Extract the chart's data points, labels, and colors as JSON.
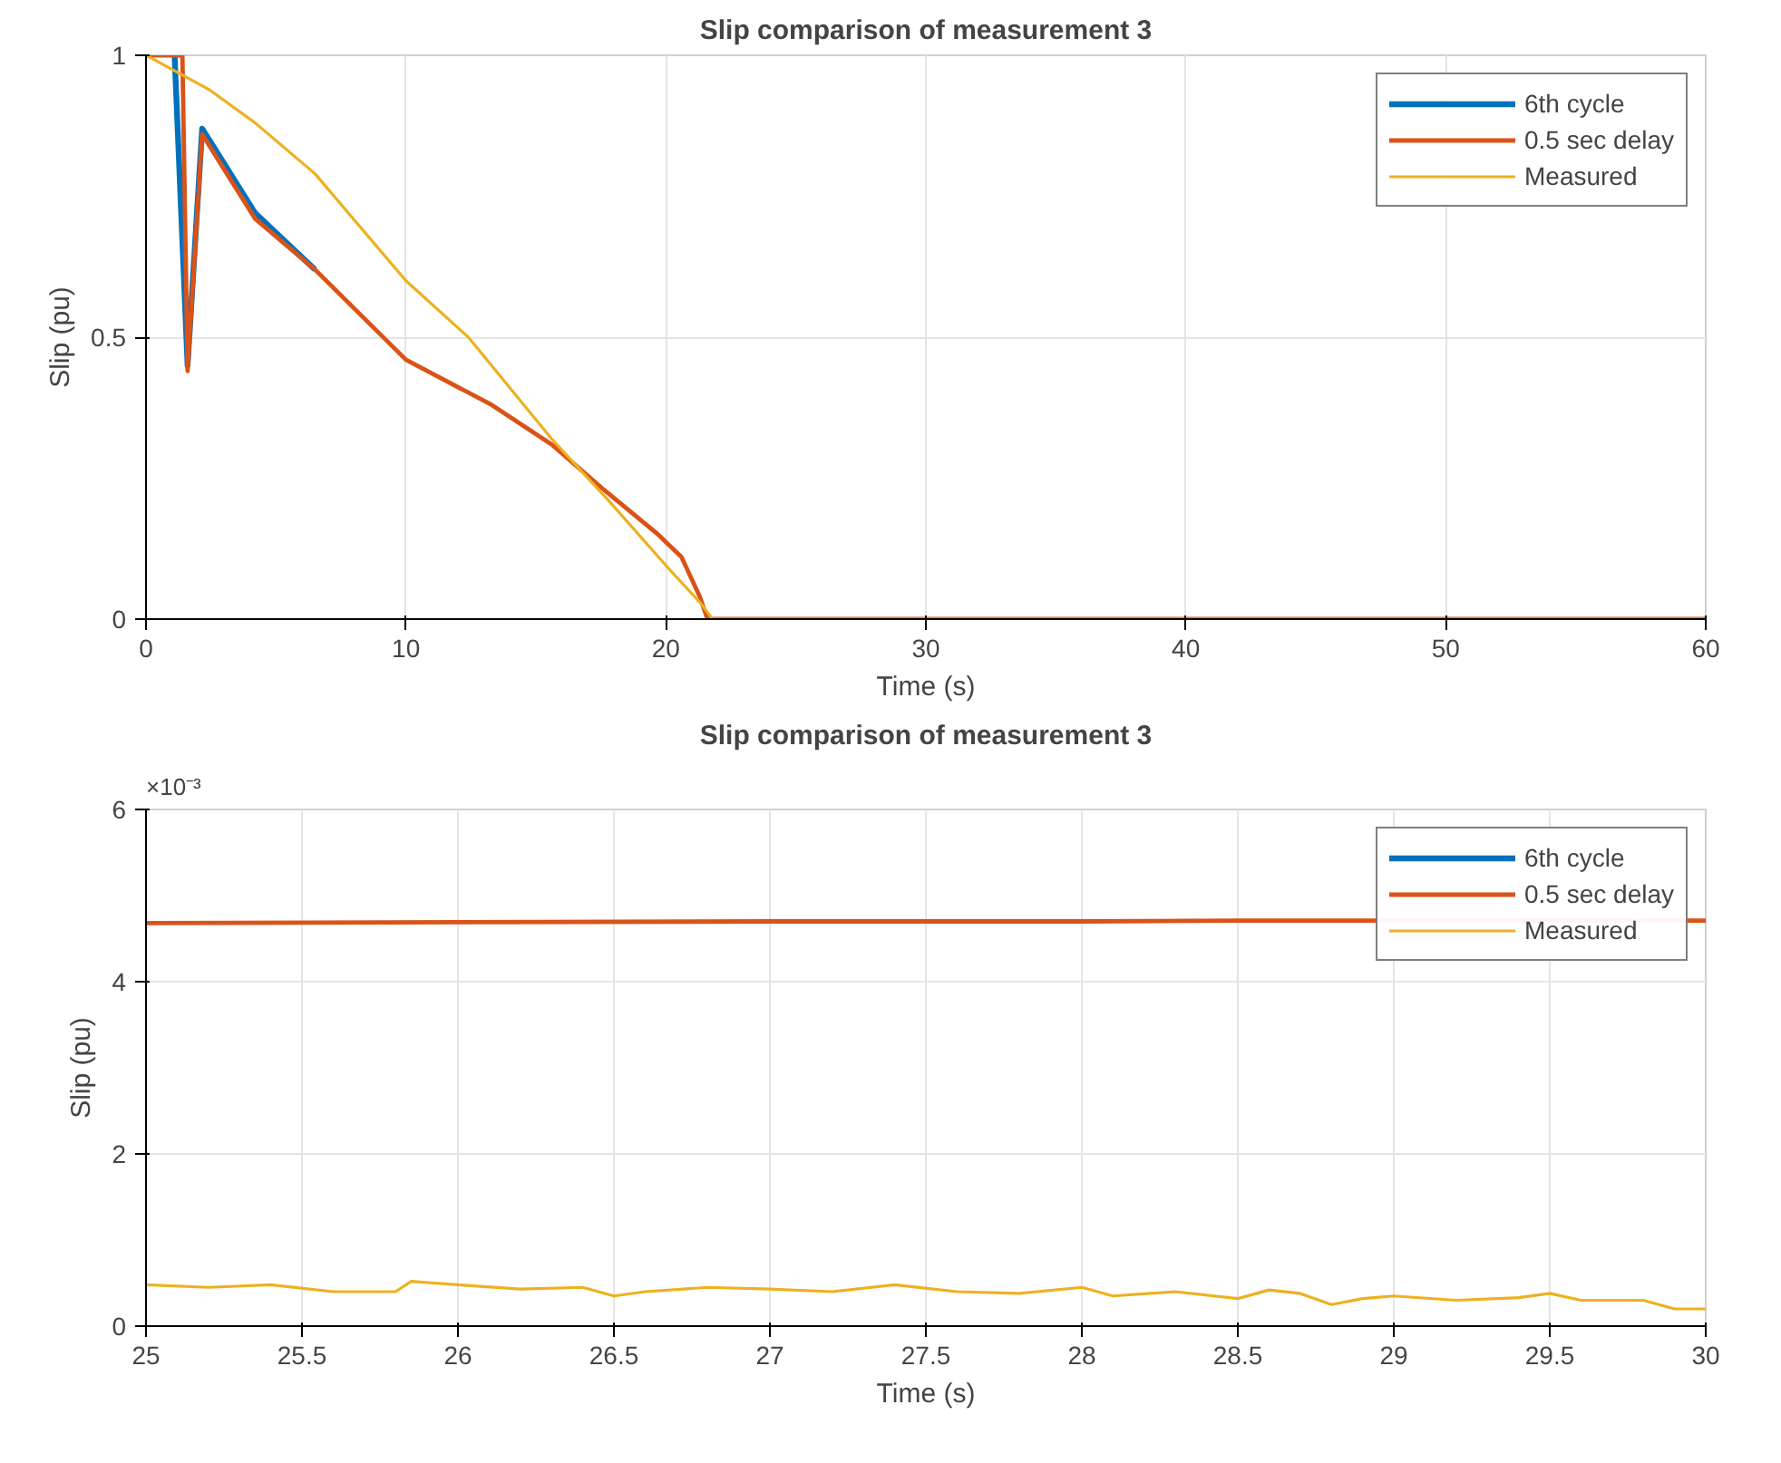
{
  "chart_data": [
    {
      "type": "line",
      "title": "Slip comparison of measurement 3",
      "xlabel": "Time (s)",
      "ylabel": "Slip (pu)",
      "xlim": [
        0,
        60
      ],
      "ylim": [
        0,
        1
      ],
      "xticks": [
        0,
        10,
        20,
        30,
        40,
        50,
        60
      ],
      "yticks": [
        0,
        0.5,
        1
      ],
      "grid": true,
      "legend": "top right",
      "series": [
        {
          "name": "6th cycle",
          "color": "#0072bd",
          "x": [
            1.1,
            1.6,
            2.16,
            4.2,
            6.5
          ],
          "values": [
            1,
            0.45,
            0.87,
            0.72,
            0.62
          ]
        },
        {
          "name": "0.5 sec delay",
          "color": "#d95319",
          "x": [
            0,
            1.4,
            1.6,
            2.16,
            4.2,
            6.5,
            10,
            13.3,
            15.6,
            17.6,
            19.7,
            20.6,
            21.3,
            21.6,
            60
          ],
          "values": [
            1,
            1,
            0.44,
            0.86,
            0.71,
            0.62,
            0.46,
            0.38,
            0.31,
            0.23,
            0.15,
            0.11,
            0.04,
            0,
            0
          ]
        },
        {
          "name": "Measured",
          "color": "#edb120",
          "x": [
            0,
            2.4,
            4.2,
            6.5,
            10,
            12.4,
            15.6,
            17.8,
            20.1,
            21.3,
            21.8,
            60
          ],
          "values": [
            1,
            0.94,
            0.88,
            0.79,
            0.6,
            0.5,
            0.32,
            0.21,
            0.09,
            0.03,
            0,
            0
          ]
        }
      ]
    },
    {
      "type": "line",
      "title": "Slip comparison of measurement 3",
      "xlabel": "Time (s)",
      "ylabel": "Slip (pu)",
      "annotations": [
        "×10⁻³"
      ],
      "xlim": [
        25,
        30
      ],
      "ylim": [
        0,
        6
      ],
      "xticks": [
        25,
        25.5,
        26,
        26.5,
        27,
        27.5,
        28,
        28.5,
        29,
        29.5,
        30
      ],
      "yticks": [
        0,
        2,
        4,
        6
      ],
      "grid": true,
      "legend": "top right",
      "series": [
        {
          "name": "6th cycle",
          "color": "#0072bd"
        },
        {
          "name": "0.5 sec delay",
          "color": "#d95319",
          "x": [
            25,
            26,
            27,
            28,
            28.5,
            30
          ],
          "values": [
            4.68,
            4.69,
            4.7,
            4.7,
            4.71,
            4.71
          ]
        },
        {
          "name": "Measured",
          "color": "#edb120",
          "x": [
            25,
            25.2,
            25.4,
            25.6,
            25.8,
            25.85,
            26,
            26.2,
            26.4,
            26.5,
            26.6,
            26.8,
            27,
            27.2,
            27.4,
            27.6,
            27.8,
            28,
            28.1,
            28.3,
            28.5,
            28.6,
            28.7,
            28.8,
            28.9,
            29,
            29.2,
            29.4,
            29.5,
            29.6,
            29.8,
            29.9,
            30
          ],
          "values": [
            0.48,
            0.45,
            0.48,
            0.4,
            0.4,
            0.52,
            0.48,
            0.43,
            0.45,
            0.35,
            0.4,
            0.45,
            0.43,
            0.4,
            0.48,
            0.4,
            0.38,
            0.45,
            0.35,
            0.4,
            0.32,
            0.42,
            0.38,
            0.25,
            0.32,
            0.35,
            0.3,
            0.33,
            0.38,
            0.3,
            0.3,
            0.2,
            0.2
          ]
        }
      ]
    }
  ]
}
